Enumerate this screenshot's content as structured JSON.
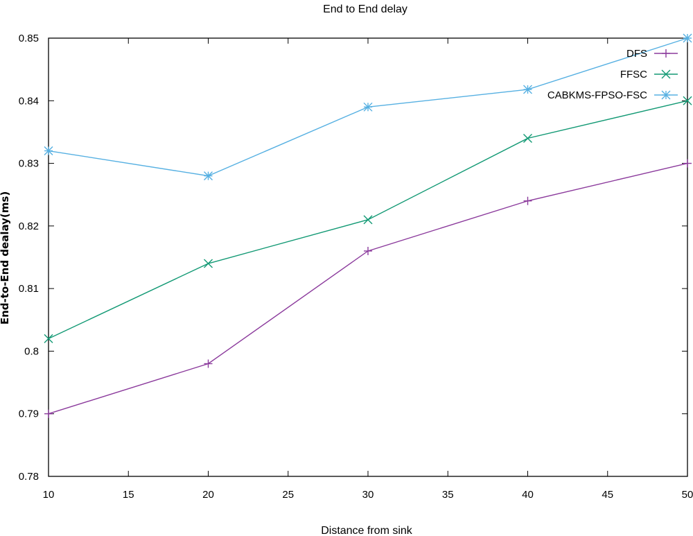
{
  "chart_data": {
    "type": "line",
    "title": "End to End delay",
    "xlabel": "Distance from sink",
    "ylabel": "End-to-End dealay(ms)",
    "x": [
      10,
      20,
      30,
      40,
      50
    ],
    "xlim": [
      10,
      50
    ],
    "ylim": [
      0.78,
      0.85
    ],
    "xticks": [
      "10",
      "15",
      "20",
      "25",
      "30",
      "35",
      "40",
      "45",
      "50"
    ],
    "yticks": [
      "0.78",
      "0.79",
      "0.8",
      "0.81",
      "0.82",
      "0.83",
      "0.84",
      "0.85"
    ],
    "grid": false,
    "legend_position": "top-right",
    "series": [
      {
        "name": "DFS",
        "values": [
          0.79,
          0.798,
          0.816,
          0.824,
          0.83
        ],
        "color": "#8B3A9C",
        "marker": "plus"
      },
      {
        "name": "FFSC",
        "values": [
          0.802,
          0.814,
          0.821,
          0.834,
          0.84
        ],
        "color": "#129974",
        "marker": "cross"
      },
      {
        "name": "CABKMS-FPSO-FSC",
        "values": [
          0.832,
          0.828,
          0.839,
          0.8418,
          0.85
        ],
        "color": "#56B0E2",
        "marker": "star"
      }
    ]
  }
}
